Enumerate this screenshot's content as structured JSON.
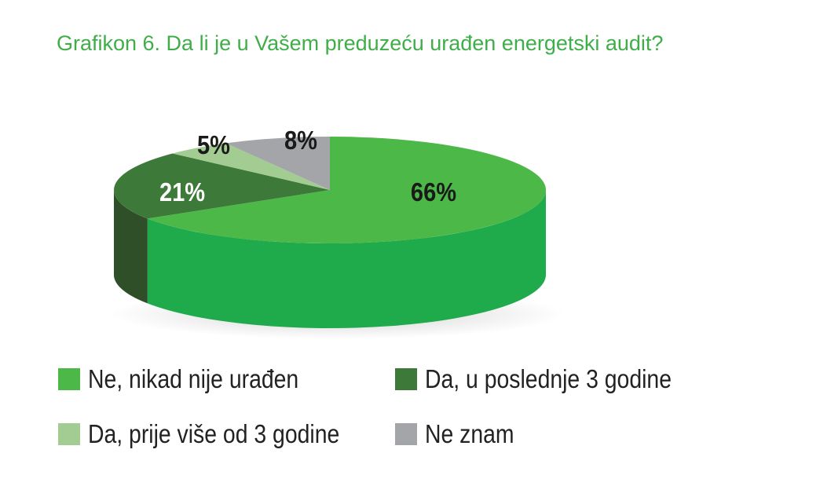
{
  "chart_data": {
    "type": "pie",
    "title": "Grafikon 6. Da li je u Vašem preduzeću urađen energetski audit?",
    "categories": [
      "Ne, nikad nije urađen",
      "Da, u poslednje 3 godine",
      "Da, prije više od 3 godine",
      "Ne znam"
    ],
    "values": [
      66,
      21,
      5,
      8
    ],
    "data_labels": [
      "66%",
      "21%",
      "5%",
      "8%"
    ],
    "colors": [
      "#4cb848",
      "#3d7a3a",
      "#a3cc93",
      "#a3a5a8"
    ],
    "side_colors": [
      "#1faa4b",
      "#2e4f27",
      "#7fa873",
      "#808285"
    ],
    "label_colors": [
      "#1a1a1a",
      "#ffffff",
      "#1a1a1a",
      "#1a1a1a"
    ],
    "legend_position": "bottom"
  },
  "legend": [
    {
      "label": "Ne, nikad nije urađen",
      "color": "#4cb848"
    },
    {
      "label": "Da, u poslednje 3 godine",
      "color": "#3d7a3a"
    },
    {
      "label": "Da, prije više od 3 godine",
      "color": "#a3cc93"
    },
    {
      "label": "Ne znam",
      "color": "#a3a5a8"
    }
  ]
}
